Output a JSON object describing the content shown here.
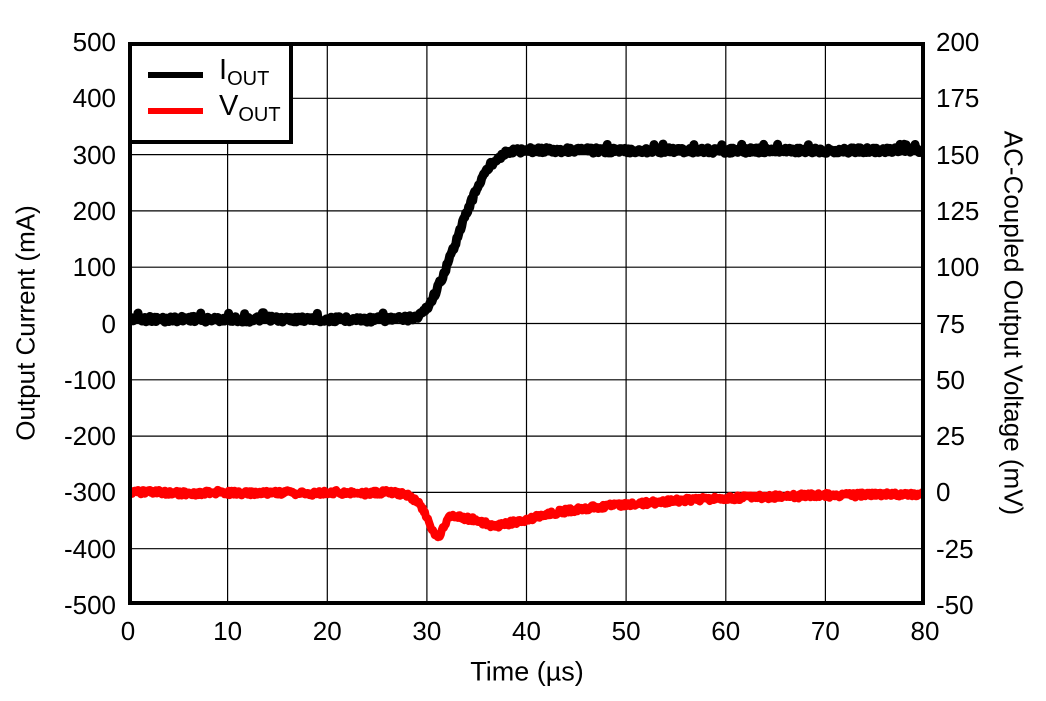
{
  "page": {
    "background": "#ffffff"
  },
  "colors": {
    "iout": "#000000",
    "vout": "#ff0000",
    "grid": "#000000",
    "frame": "#000000"
  },
  "chart_data": {
    "type": "line",
    "title": "",
    "xlabel": "Time (µs)",
    "xlim": [
      0,
      80
    ],
    "x_ticks": [
      0,
      10,
      20,
      30,
      40,
      50,
      60,
      70,
      80
    ],
    "grid": true,
    "axes": {
      "left": {
        "label": "Output Current (mA)",
        "lim": [
          -500,
          500
        ],
        "ticks": [
          500,
          400,
          300,
          200,
          100,
          0,
          -100,
          -200,
          -300,
          -400,
          -500
        ]
      },
      "right": {
        "label": "AC-Coupled Output Voltage (mV)",
        "lim": [
          -50,
          200
        ],
        "ticks": [
          200,
          175,
          150,
          125,
          100,
          75,
          50,
          25,
          0,
          -25,
          -50
        ]
      }
    },
    "legend": {
      "position": "top-left",
      "entries": [
        {
          "main": "I",
          "sub": "OUT",
          "color": "#000000"
        },
        {
          "main": "V",
          "sub": "OUT",
          "color": "#ff0000"
        }
      ]
    },
    "series": [
      {
        "name": "IOUT",
        "axis": "left",
        "color": "#000000",
        "stroke_width": 9,
        "noise_amp": 2.8,
        "points": [
          [
            0,
            8
          ],
          [
            2,
            8
          ],
          [
            4,
            7
          ],
          [
            6,
            9
          ],
          [
            8,
            7
          ],
          [
            10,
            8
          ],
          [
            12,
            7
          ],
          [
            14,
            9
          ],
          [
            16,
            7
          ],
          [
            18,
            8
          ],
          [
            20,
            7
          ],
          [
            22,
            8
          ],
          [
            24,
            7
          ],
          [
            26,
            8
          ],
          [
            27.5,
            8
          ],
          [
            28.5,
            10
          ],
          [
            29,
            12
          ],
          [
            29.5,
            18
          ],
          [
            30,
            28
          ],
          [
            30.5,
            42
          ],
          [
            31,
            60
          ],
          [
            31.5,
            80
          ],
          [
            32,
            102
          ],
          [
            32.5,
            126
          ],
          [
            33,
            150
          ],
          [
            33.5,
            174
          ],
          [
            34,
            197
          ],
          [
            34.5,
            219
          ],
          [
            35,
            239
          ],
          [
            35.5,
            257
          ],
          [
            36,
            272
          ],
          [
            36.5,
            284
          ],
          [
            37,
            293
          ],
          [
            37.5,
            299
          ],
          [
            38,
            303
          ],
          [
            38.5,
            306
          ],
          [
            39,
            307
          ],
          [
            40,
            308
          ],
          [
            45,
            308
          ],
          [
            50,
            307
          ],
          [
            55,
            308
          ],
          [
            60,
            307
          ],
          [
            65,
            308
          ],
          [
            70,
            307
          ],
          [
            75,
            308
          ],
          [
            80,
            307
          ]
        ]
      },
      {
        "name": "VOUT",
        "axis": "right",
        "color": "#ff0000",
        "stroke_width": 8,
        "noise_amp": 2.5,
        "points": [
          [
            0,
            0
          ],
          [
            3,
            0
          ],
          [
            6,
            -0.5
          ],
          [
            9,
            0
          ],
          [
            12,
            -0.5
          ],
          [
            15,
            0
          ],
          [
            18,
            -0.5
          ],
          [
            21,
            0
          ],
          [
            24,
            -0.5
          ],
          [
            26,
            0
          ],
          [
            27.5,
            -0.5
          ],
          [
            28.3,
            -1.5
          ],
          [
            29,
            -4
          ],
          [
            29.5,
            -7
          ],
          [
            30,
            -11
          ],
          [
            30.4,
            -15
          ],
          [
            30.8,
            -18.5
          ],
          [
            31.1,
            -20
          ],
          [
            31.4,
            -18.5
          ],
          [
            31.8,
            -14
          ],
          [
            32.2,
            -11
          ],
          [
            32.7,
            -10
          ],
          [
            33.2,
            -10.5
          ],
          [
            34,
            -11.5
          ],
          [
            35,
            -12.5
          ],
          [
            36,
            -14
          ],
          [
            36.8,
            -15
          ],
          [
            37.5,
            -14.5
          ],
          [
            38.5,
            -13.5
          ],
          [
            39.5,
            -12.5
          ],
          [
            41,
            -11
          ],
          [
            43,
            -9
          ],
          [
            45,
            -7.5
          ],
          [
            47,
            -6.5
          ],
          [
            49,
            -5.5
          ],
          [
            51,
            -5
          ],
          [
            54,
            -4
          ],
          [
            57,
            -3
          ],
          [
            60,
            -2.5
          ],
          [
            64,
            -2
          ],
          [
            68,
            -1.5
          ],
          [
            72,
            -1.2
          ],
          [
            76,
            -1
          ],
          [
            80,
            -0.8
          ]
        ]
      }
    ]
  }
}
